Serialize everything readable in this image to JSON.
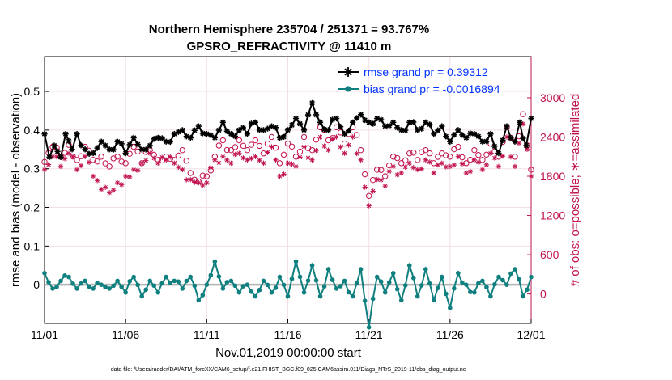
{
  "chart_data": {
    "type": "line",
    "title": "Northern Hemisphere 235704 / 251371 = 93.767%",
    "subtitle": "GPSRO_REFRACTIVITY @ 11410 m",
    "xlabel": "Nov.01,2019 00:00:00 start",
    "ylabel": "rmse and bias (model - observation)",
    "y2label": "# of obs: o=possible; ∗=assimilated",
    "footnote": "data file: /Users/raeder/DAI/ATM_forcXX/CAM6_setup/f.e21.FHIST_BGC.f09_025.CAM6assim.011/Diags_NTrS_2019-11/obs_diag_output.nc",
    "xlim": [
      0,
      30
    ],
    "ylim": [
      -0.1,
      0.59
    ],
    "y2lim": [
      -450,
      3630
    ],
    "x_ticks": [
      0,
      5,
      10,
      15,
      20,
      25,
      30
    ],
    "x_tick_labels": [
      "11/01",
      "11/06",
      "11/11",
      "11/16",
      "11/21",
      "11/26",
      "12/01"
    ],
    "y_ticks": [
      0,
      0.1,
      0.2,
      0.3,
      0.4,
      0.5
    ],
    "y_tick_labels": [
      "0",
      "0.1",
      "0.2",
      "0.3",
      "0.4",
      "0.5"
    ],
    "y2_ticks": [
      0,
      600,
      1200,
      1800,
      2400,
      3000
    ],
    "y2_tick_labels": [
      "0",
      "600",
      "1200",
      "1800",
      "2400",
      "3000"
    ],
    "legend_position": "top-right",
    "series": [
      {
        "name": "rmse grand pr = 0.39312",
        "color": "#000000",
        "marker": "asterisk",
        "anchors": [
          [
            0,
            0.39
          ],
          [
            0.3,
            0.33
          ],
          [
            0.6,
            0.36
          ],
          [
            1.0,
            0.33
          ],
          [
            1.3,
            0.39
          ],
          [
            1.7,
            0.35
          ],
          [
            2.0,
            0.39
          ],
          [
            2.5,
            0.35
          ],
          [
            3.0,
            0.34
          ],
          [
            3.5,
            0.37
          ],
          [
            4.0,
            0.35
          ],
          [
            4.5,
            0.37
          ],
          [
            5.0,
            0.34
          ],
          [
            5.5,
            0.38
          ],
          [
            6.0,
            0.35
          ],
          [
            6.5,
            0.36
          ],
          [
            7.0,
            0.38
          ],
          [
            7.5,
            0.37
          ],
          [
            8.0,
            0.39
          ],
          [
            8.5,
            0.4
          ],
          [
            9.0,
            0.38
          ],
          [
            9.5,
            0.41
          ],
          [
            10.0,
            0.39
          ],
          [
            10.5,
            0.38
          ],
          [
            11.0,
            0.42
          ],
          [
            11.5,
            0.39
          ],
          [
            12.0,
            0.4
          ],
          [
            12.5,
            0.39
          ],
          [
            13.0,
            0.42
          ],
          [
            13.5,
            0.4
          ],
          [
            14.0,
            0.41
          ],
          [
            14.5,
            0.38
          ],
          [
            15.0,
            0.4
          ],
          [
            15.5,
            0.43
          ],
          [
            16.0,
            0.4
          ],
          [
            16.5,
            0.47
          ],
          [
            17.0,
            0.42
          ],
          [
            17.5,
            0.4
          ],
          [
            18.0,
            0.43
          ],
          [
            18.5,
            0.39
          ],
          [
            19.0,
            0.42
          ],
          [
            19.5,
            0.44
          ],
          [
            20.0,
            0.42
          ],
          [
            20.5,
            0.43
          ],
          [
            21.0,
            0.41
          ],
          [
            21.5,
            0.42
          ],
          [
            22.0,
            0.4
          ],
          [
            22.5,
            0.42
          ],
          [
            23.0,
            0.4
          ],
          [
            23.5,
            0.42
          ],
          [
            24.0,
            0.39
          ],
          [
            24.5,
            0.41
          ],
          [
            25.0,
            0.37
          ],
          [
            25.5,
            0.4
          ],
          [
            26.0,
            0.38
          ],
          [
            26.5,
            0.39
          ],
          [
            27.0,
            0.37
          ],
          [
            27.5,
            0.39
          ],
          [
            28.0,
            0.34
          ],
          [
            28.5,
            0.41
          ],
          [
            29.0,
            0.37
          ],
          [
            29.3,
            0.42
          ],
          [
            29.7,
            0.36
          ],
          [
            30.0,
            0.43
          ]
        ]
      },
      {
        "name": "bias grand pr = -0.0016894",
        "color": "#0f7f7f",
        "marker": "circle",
        "anchors": [
          [
            0,
            0.03
          ],
          [
            0.5,
            -0.01
          ],
          [
            1.0,
            0.01
          ],
          [
            1.5,
            0.02
          ],
          [
            2.0,
            -0.01
          ],
          [
            2.5,
            0.01
          ],
          [
            3.0,
            -0.01
          ],
          [
            3.5,
            0.0
          ],
          [
            4.0,
            -0.01
          ],
          [
            4.5,
            0.01
          ],
          [
            5.0,
            -0.02
          ],
          [
            5.5,
            0.02
          ],
          [
            6.0,
            -0.03
          ],
          [
            6.5,
            0.01
          ],
          [
            7.0,
            -0.02
          ],
          [
            7.5,
            0.02
          ],
          [
            8.0,
            0.01
          ],
          [
            8.5,
            -0.01
          ],
          [
            9.0,
            0.02
          ],
          [
            9.5,
            -0.04
          ],
          [
            10.0,
            0.0
          ],
          [
            10.5,
            0.06
          ],
          [
            11.0,
            -0.01
          ],
          [
            11.5,
            0.01
          ],
          [
            12.0,
            -0.02
          ],
          [
            12.5,
            0.0
          ],
          [
            13.0,
            -0.03
          ],
          [
            13.5,
            0.01
          ],
          [
            14.0,
            -0.02
          ],
          [
            14.5,
            0.02
          ],
          [
            15.0,
            -0.03
          ],
          [
            15.5,
            0.06
          ],
          [
            16.0,
            -0.02
          ],
          [
            16.5,
            0.05
          ],
          [
            17.0,
            -0.03
          ],
          [
            17.5,
            0.04
          ],
          [
            18.0,
            -0.01
          ],
          [
            18.5,
            0.01
          ],
          [
            19.0,
            -0.03
          ],
          [
            19.5,
            0.04
          ],
          [
            20.0,
            -0.11
          ],
          [
            20.5,
            0.02
          ],
          [
            21.0,
            -0.02
          ],
          [
            21.5,
            0.03
          ],
          [
            22.0,
            -0.04
          ],
          [
            22.5,
            0.05
          ],
          [
            23.0,
            -0.03
          ],
          [
            23.5,
            0.04
          ],
          [
            24.0,
            -0.04
          ],
          [
            24.5,
            0.02
          ],
          [
            25.0,
            -0.06
          ],
          [
            25.5,
            0.03
          ],
          [
            26.0,
            0.0
          ],
          [
            26.5,
            -0.02
          ],
          [
            27.0,
            0.01
          ],
          [
            27.5,
            -0.03
          ],
          [
            28.0,
            0.02
          ],
          [
            28.5,
            0.0
          ],
          [
            29.0,
            0.04
          ],
          [
            29.5,
            -0.03
          ],
          [
            30.0,
            0.02
          ]
        ]
      },
      {
        "name": "# obs possible",
        "axis": "right",
        "color": "#c0104f",
        "marker": "circle-open",
        "anchors": [
          [
            0,
            2020
          ],
          [
            0.5,
            2250
          ],
          [
            1.0,
            2100
          ],
          [
            1.5,
            2280
          ],
          [
            2.0,
            2050
          ],
          [
            2.5,
            2250
          ],
          [
            3.0,
            2050
          ],
          [
            3.5,
            2100
          ],
          [
            4.0,
            1950
          ],
          [
            4.5,
            2100
          ],
          [
            5.0,
            2000
          ],
          [
            5.5,
            2250
          ],
          [
            6.0,
            2000
          ],
          [
            6.5,
            2200
          ],
          [
            7.0,
            2050
          ],
          [
            7.5,
            2100
          ],
          [
            8.0,
            2050
          ],
          [
            8.5,
            2200
          ],
          [
            9.0,
            1850
          ],
          [
            9.5,
            1720
          ],
          [
            10.0,
            1800
          ],
          [
            10.5,
            2100
          ],
          [
            11.0,
            2350
          ],
          [
            11.5,
            2200
          ],
          [
            12.0,
            2350
          ],
          [
            12.5,
            2200
          ],
          [
            13.0,
            2350
          ],
          [
            13.5,
            2150
          ],
          [
            14.0,
            2400
          ],
          [
            14.5,
            2000
          ],
          [
            15.0,
            2300
          ],
          [
            15.5,
            2100
          ],
          [
            16.0,
            2400
          ],
          [
            16.5,
            2200
          ],
          [
            17.0,
            2550
          ],
          [
            17.5,
            2350
          ],
          [
            18.0,
            2550
          ],
          [
            18.5,
            2300
          ],
          [
            19.0,
            2550
          ],
          [
            19.5,
            2200
          ],
          [
            20.0,
            1500
          ],
          [
            20.5,
            1900
          ],
          [
            21.0,
            1800
          ],
          [
            21.5,
            2100
          ],
          [
            22.0,
            2000
          ],
          [
            22.5,
            2150
          ],
          [
            23.0,
            2050
          ],
          [
            23.5,
            2200
          ],
          [
            24.0,
            2000
          ],
          [
            24.5,
            2150
          ],
          [
            25.0,
            2100
          ],
          [
            25.5,
            2250
          ],
          [
            26.0,
            2000
          ],
          [
            26.5,
            2200
          ],
          [
            27.0,
            2050
          ],
          [
            27.5,
            2300
          ],
          [
            28.0,
            2100
          ],
          [
            28.5,
            2550
          ],
          [
            29.0,
            2100
          ],
          [
            29.5,
            2750
          ],
          [
            30.0,
            1900
          ]
        ]
      },
      {
        "name": "# obs assimilated",
        "axis": "right",
        "color": "#c0104f",
        "marker": "asterisk",
        "anchors": [
          [
            0,
            1900
          ],
          [
            0.5,
            2100
          ],
          [
            1.0,
            1950
          ],
          [
            1.5,
            2150
          ],
          [
            2.0,
            1900
          ],
          [
            2.5,
            2100
          ],
          [
            3.0,
            1800
          ],
          [
            3.5,
            1600
          ],
          [
            4.0,
            1550
          ],
          [
            4.5,
            1700
          ],
          [
            5.0,
            1800
          ],
          [
            5.5,
            1900
          ],
          [
            6.0,
            2000
          ],
          [
            6.5,
            2150
          ],
          [
            7.0,
            2000
          ],
          [
            7.5,
            2050
          ],
          [
            8.0,
            2000
          ],
          [
            8.5,
            1900
          ],
          [
            9.0,
            1750
          ],
          [
            9.5,
            1700
          ],
          [
            10.0,
            1700
          ],
          [
            10.5,
            2050
          ],
          [
            11.0,
            2100
          ],
          [
            11.5,
            2000
          ],
          [
            12.0,
            2150
          ],
          [
            12.5,
            2050
          ],
          [
            13.0,
            2100
          ],
          [
            13.5,
            2000
          ],
          [
            14.0,
            2250
          ],
          [
            14.5,
            1800
          ],
          [
            15.0,
            2000
          ],
          [
            15.5,
            1950
          ],
          [
            16.0,
            2250
          ],
          [
            16.5,
            2050
          ],
          [
            17.0,
            2400
          ],
          [
            17.5,
            2200
          ],
          [
            18.0,
            2400
          ],
          [
            18.5,
            2150
          ],
          [
            19.0,
            2400
          ],
          [
            19.5,
            2050
          ],
          [
            20.0,
            1350
          ],
          [
            20.5,
            1750
          ],
          [
            21.0,
            1650
          ],
          [
            21.5,
            1950
          ],
          [
            22.0,
            1850
          ],
          [
            22.5,
            2000
          ],
          [
            23.0,
            1900
          ],
          [
            23.5,
            2050
          ],
          [
            24.0,
            1850
          ],
          [
            24.5,
            2000
          ],
          [
            25.0,
            1950
          ],
          [
            25.5,
            2100
          ],
          [
            26.0,
            1850
          ],
          [
            26.5,
            2050
          ],
          [
            27.0,
            1900
          ],
          [
            27.5,
            2150
          ],
          [
            28.0,
            1950
          ],
          [
            28.5,
            2400
          ],
          [
            29.0,
            1950
          ],
          [
            29.5,
            2600
          ],
          [
            30.0,
            1800
          ]
        ]
      }
    ]
  }
}
